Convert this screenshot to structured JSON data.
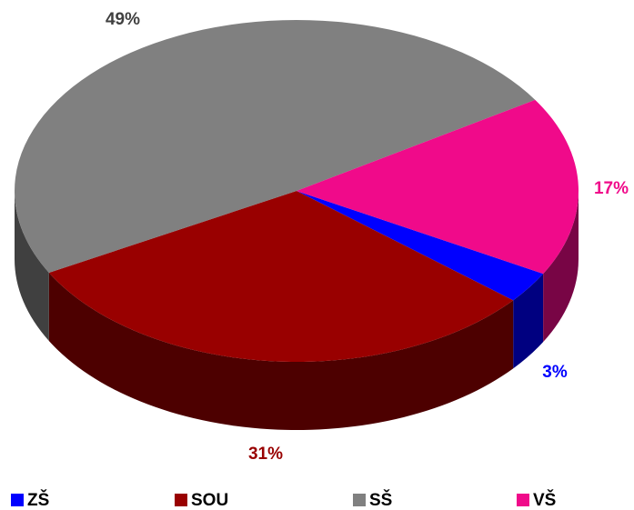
{
  "chart_data": {
    "type": "pie",
    "categories": [
      "ZŠ",
      "SOU",
      "SŠ",
      "VŠ"
    ],
    "values": [
      3,
      31,
      49,
      17
    ],
    "value_labels": [
      "3%",
      "31%",
      "49%",
      "17%"
    ],
    "colors": [
      "#0000ff",
      "#990000",
      "#808080",
      "#f00a8a"
    ],
    "legend": "bottom"
  }
}
